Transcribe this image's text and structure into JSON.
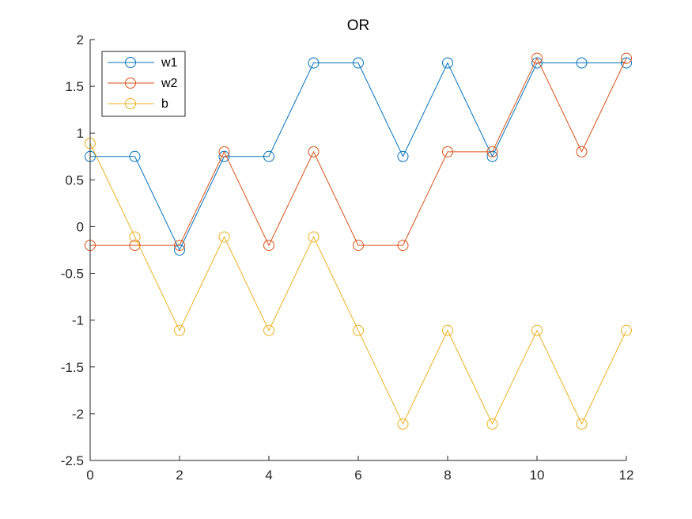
{
  "chart_data": {
    "type": "line",
    "title": "OR",
    "xlabel": "",
    "ylabel": "",
    "xlim": [
      0,
      12
    ],
    "ylim": [
      -2.5,
      2
    ],
    "x_ticks": [
      0,
      2,
      4,
      6,
      8,
      10,
      12
    ],
    "y_ticks": [
      2,
      1.5,
      1,
      0.5,
      0,
      -0.5,
      -1,
      -1.5,
      -2,
      -2.5
    ],
    "x_tick_labels": [
      "0",
      "2",
      "4",
      "6",
      "8",
      "10",
      "12"
    ],
    "y_tick_labels": [
      "2",
      "1.5",
      "1",
      "0.5",
      "0",
      "-0.5",
      "-1",
      "-1.5",
      "-2",
      "-2.5"
    ],
    "grid": false,
    "legend_position": "top-left",
    "marker": "circle",
    "x": [
      0,
      1,
      2,
      3,
      4,
      5,
      6,
      7,
      8,
      9,
      10,
      11,
      12
    ],
    "series": [
      {
        "name": "w1",
        "color": "#0072BD",
        "values": [
          0.75,
          0.75,
          -0.25,
          0.75,
          0.75,
          1.75,
          1.75,
          0.75,
          1.75,
          0.75,
          1.75,
          1.75,
          1.75
        ]
      },
      {
        "name": "w2",
        "color": "#D95319",
        "values": [
          -0.2,
          -0.2,
          -0.2,
          0.8,
          -0.2,
          0.8,
          -0.2,
          -0.2,
          0.8,
          0.8,
          1.8,
          0.8,
          1.8
        ]
      },
      {
        "name": "b",
        "color": "#EDB120",
        "values": [
          0.89,
          -0.11,
          -1.11,
          -0.11,
          -1.11,
          -0.11,
          -1.11,
          -2.11,
          -1.11,
          -2.11,
          -1.11,
          -2.11,
          -1.11
        ]
      }
    ]
  }
}
